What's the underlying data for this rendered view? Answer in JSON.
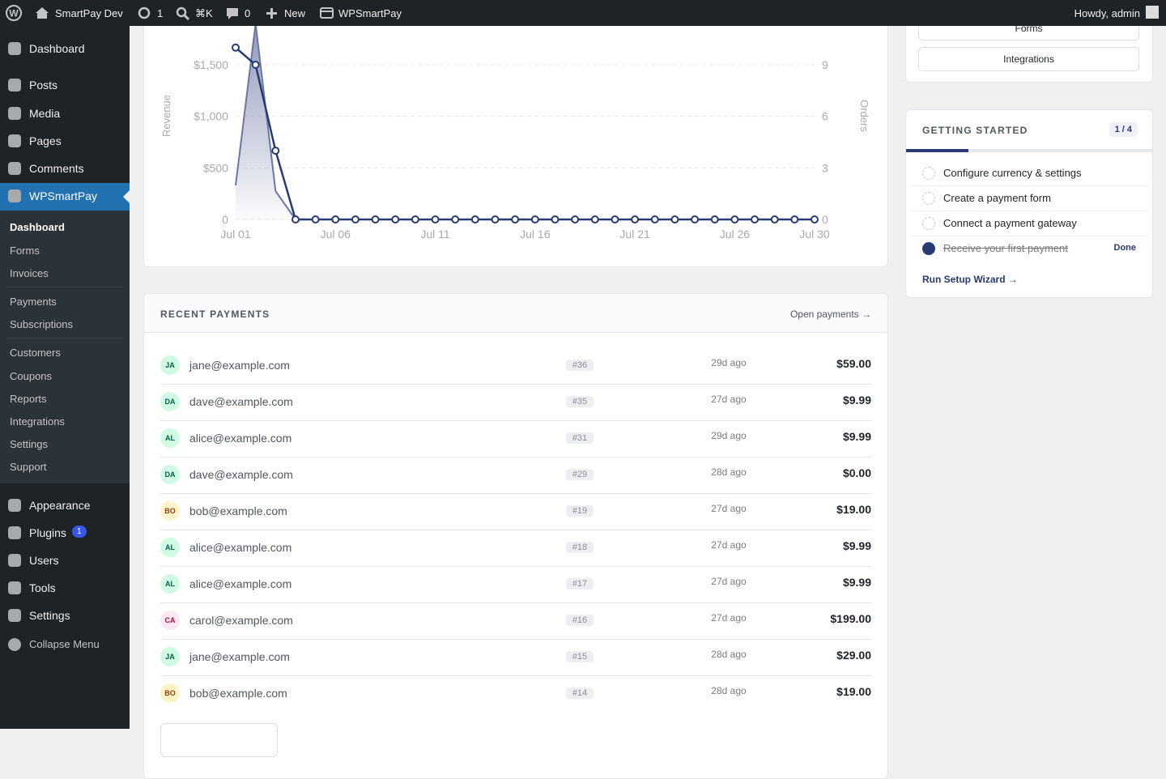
{
  "admin_bar": {
    "site": "SmartPay Dev",
    "updates": 1,
    "search": "⌘K",
    "comments": 0,
    "new": "New",
    "plugin": "WPSmartPay",
    "greeting": "Howdy, admin"
  },
  "menu": {
    "top": [
      "Dashboard",
      "Posts",
      "Media",
      "Pages",
      "Comments"
    ],
    "active": "WPSmartPay",
    "submenu": [
      [
        "Dashboard",
        "Forms",
        "Invoices"
      ],
      [
        "Payments",
        "Subscriptions"
      ],
      [
        "Customers",
        "Coupons",
        "Reports",
        "Integrations",
        "Settings",
        "Support"
      ]
    ],
    "bottom": [
      {
        "label": "Appearance"
      },
      {
        "label": "Plugins",
        "badge": 1
      },
      {
        "label": "Users"
      },
      {
        "label": "Tools"
      },
      {
        "label": "Settings"
      }
    ],
    "collapse": "Collapse Menu"
  },
  "revenue_chart": {
    "type": "line",
    "x": [
      "Jul 01",
      null,
      null,
      null,
      null,
      "Jul 06",
      null,
      null,
      null,
      null,
      "Jul 11",
      null,
      null,
      null,
      null,
      "Jul 16",
      null,
      null,
      null,
      null,
      "Jul 21",
      null,
      null,
      null,
      null,
      "Jul 26",
      null,
      null,
      null,
      "Jul 30"
    ],
    "series": [
      {
        "name": "Revenue",
        "color": "#6b76a3",
        "values": [
          330,
          1900,
          275,
          0,
          0,
          0,
          0,
          0,
          0,
          0,
          0,
          0,
          0,
          0,
          0,
          0,
          0,
          0,
          0,
          0,
          0,
          0,
          0,
          0,
          0,
          0,
          0,
          0,
          0,
          0
        ]
      },
      {
        "name": "Orders",
        "color": "#283a72",
        "axis": "y2",
        "values": [
          10,
          9,
          4,
          0,
          0,
          0,
          0,
          0,
          0,
          0,
          0,
          0,
          0,
          0,
          0,
          0,
          0,
          0,
          0,
          0,
          0,
          0,
          0,
          0,
          0,
          0,
          0,
          0,
          0,
          0
        ]
      }
    ],
    "ylabel": "Revenue",
    "y2label": "Orders",
    "ylim": [
      0,
      2000
    ],
    "yticks": [
      0,
      {
        "value": 500,
        "label": "$500"
      },
      {
        "value": 1000,
        "label": "$1,000"
      },
      {
        "value": 1500,
        "label": "$1,500"
      }
    ],
    "y2lim": [
      0,
      12
    ],
    "y2ticks": [
      0,
      3,
      6,
      9
    ],
    "grid": true
  },
  "recent_payments": {
    "title": "RECENT PAYMENTS",
    "link": "Open payments →",
    "rows": [
      {
        "initials": "JA",
        "email": "jane@example.com",
        "id": "#36",
        "time": "29d ago",
        "amount": "$59.00"
      },
      {
        "initials": "DA",
        "email": "dave@example.com",
        "id": "#35",
        "time": "27d ago",
        "amount": "$9.99"
      },
      {
        "initials": "AL",
        "email": "alice@example.com",
        "id": "#31",
        "time": "29d ago",
        "amount": "$9.99"
      },
      {
        "initials": "DA",
        "email": "dave@example.com",
        "id": "#29",
        "time": "28d ago",
        "amount": "$0.00"
      },
      {
        "initials": "BO",
        "email": "bob@example.com",
        "id": "#19",
        "time": "27d ago",
        "amount": "$19.00"
      },
      {
        "initials": "AL",
        "email": "alice@example.com",
        "id": "#18",
        "time": "27d ago",
        "amount": "$9.99"
      },
      {
        "initials": "AL",
        "email": "alice@example.com",
        "id": "#17",
        "time": "27d ago",
        "amount": "$9.99"
      },
      {
        "initials": "CA",
        "email": "carol@example.com",
        "id": "#16",
        "time": "27d ago",
        "amount": "$199.00"
      },
      {
        "initials": "JA",
        "email": "jane@example.com",
        "id": "#15",
        "time": "28d ago",
        "amount": "$29.00"
      },
      {
        "initials": "BO",
        "email": "bob@example.com",
        "id": "#14",
        "time": "28d ago",
        "amount": "$19.00"
      }
    ]
  },
  "quick_links": [
    "Forms",
    "Integrations"
  ],
  "getting_started": {
    "title": "GETTING STARTED",
    "progress": "1 / 4",
    "steps": [
      {
        "label": "Configure currency & settings"
      },
      {
        "label": "Create a payment form"
      },
      {
        "label": "Connect a payment gateway"
      },
      {
        "label": "Receive your first payment",
        "status": "Done"
      }
    ],
    "wizard": "Run Setup Wizard →"
  }
}
